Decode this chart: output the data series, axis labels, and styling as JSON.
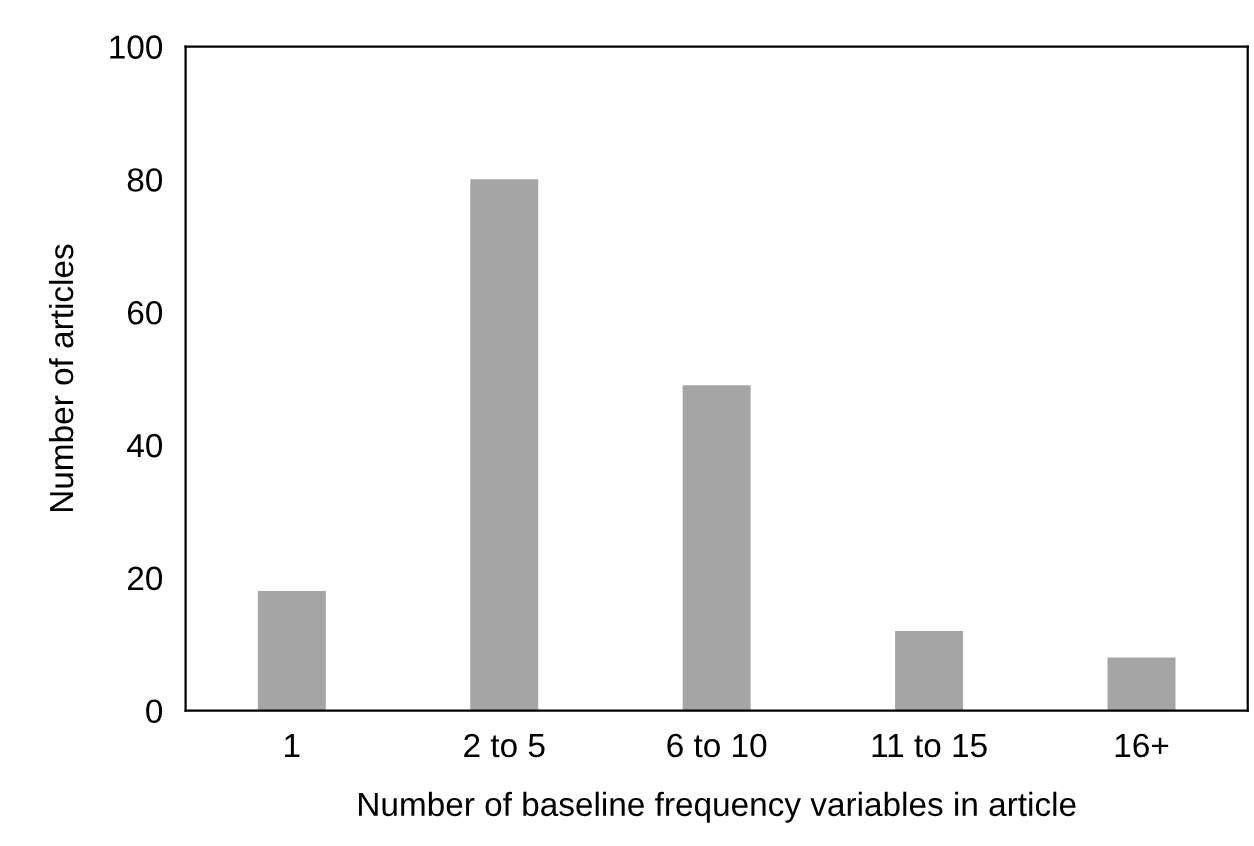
{
  "chart_data": {
    "type": "bar",
    "xlabel": "Number of baseline frequency variables in article",
    "ylabel": "Number of articles",
    "categories": [
      "1",
      "2 to 5",
      "6 to 10",
      "11 to 15",
      "16+"
    ],
    "values": [
      18,
      80,
      49,
      12,
      8
    ],
    "color": "#a5a5a5",
    "ylim": [
      0,
      100
    ],
    "yticks": [
      0,
      20,
      40,
      60,
      80,
      100
    ],
    "grid": false
  }
}
